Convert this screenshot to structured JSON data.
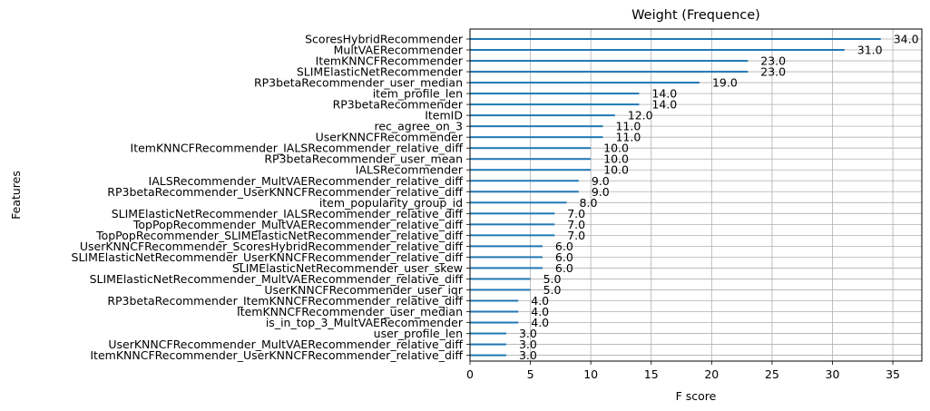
{
  "chart_data": {
    "type": "bar",
    "orientation": "horizontal",
    "title": "Weight (Frequence)",
    "xlabel": "F score",
    "ylabel": "Features",
    "xlim": [
      0,
      37.4
    ],
    "xticks": [
      0,
      5,
      10,
      15,
      20,
      25,
      30,
      35
    ],
    "grid": true,
    "bar_color": "#1f77b4",
    "categories": [
      "ScoresHybridRecommender",
      "MultVAERecommender",
      "ItemKNNCFRecommender",
      "SLIMElasticNetRecommender",
      "RP3betaRecommender_user_median",
      "item_profile_len",
      "RP3betaRecommender",
      "ItemID",
      "rec_agree_on_3",
      "UserKNNCFRecommender",
      "ItemKNNCFRecommender_IALSRecommender_relative_diff",
      "RP3betaRecommender_user_mean",
      "IALSRecommender",
      "IALSRecommender_MultVAERecommender_relative_diff",
      "RP3betaRecommender_UserKNNCFRecommender_relative_diff",
      "item_popularity_group_id",
      "SLIMElasticNetRecommender_IALSRecommender_relative_diff",
      "TopPopRecommender_MultVAERecommender_relative_diff",
      "TopPopRecommender_SLIMElasticNetRecommender_relative_diff",
      "UserKNNCFRecommender_ScoresHybridRecommender_relative_diff",
      "SLIMElasticNetRecommender_UserKNNCFRecommender_relative_diff",
      "SLIMElasticNetRecommender_user_skew",
      "SLIMElasticNetRecommender_MultVAERecommender_relative_diff",
      "UserKNNCFRecommender_user_iqr",
      "RP3betaRecommender_ItemKNNCFRecommender_relative_diff",
      "ItemKNNCFRecommender_user_median",
      "is_in_top_3_MultVAERecommender",
      "user_profile_len",
      "UserKNNCFRecommender_MultVAERecommender_relative_diff",
      "ItemKNNCFRecommender_UserKNNCFRecommender_relative_diff"
    ],
    "values": [
      34,
      31,
      23,
      23,
      19,
      14,
      14,
      12,
      11,
      11,
      10,
      10,
      10,
      9,
      9,
      8,
      7,
      7,
      7,
      6,
      6,
      6,
      5,
      5,
      4,
      4,
      4,
      3,
      3,
      3
    ],
    "value_labels": [
      "34.0",
      "31.0",
      "23.0",
      "23.0",
      "19.0",
      "14.0",
      "14.0",
      "12.0",
      "11.0",
      "11.0",
      "10.0",
      "10.0",
      "10.0",
      "9.0",
      "9.0",
      "8.0",
      "7.0",
      "7.0",
      "7.0",
      "6.0",
      "6.0",
      "6.0",
      "5.0",
      "5.0",
      "4.0",
      "4.0",
      "4.0",
      "3.0",
      "3.0",
      "3.0"
    ]
  }
}
